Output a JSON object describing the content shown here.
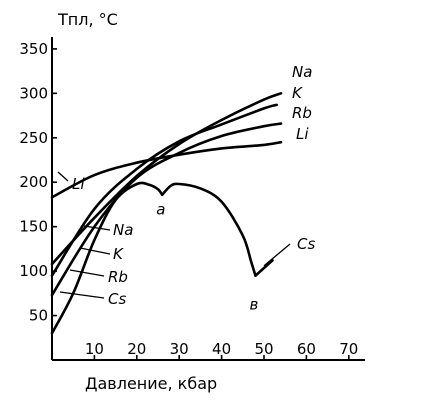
{
  "chart_data": {
    "type": "line",
    "ylabel": "Tпл, °C",
    "xlabel": "Давление, кбар",
    "xlim": [
      0,
      75
    ],
    "ylim": [
      0,
      360
    ],
    "x_ticks": [
      10,
      20,
      30,
      40,
      50,
      60,
      70
    ],
    "y_ticks": [
      50,
      100,
      150,
      200,
      250,
      300,
      350
    ],
    "grid": false,
    "series": [
      {
        "name": "Na",
        "x": [
          0,
          10,
          20,
          30,
          40,
          50,
          54
        ],
        "y": [
          108,
          160,
          207,
          243,
          270,
          293,
          300
        ]
      },
      {
        "name": "K",
        "x": [
          0,
          10,
          20,
          30,
          40,
          50,
          53
        ],
        "y": [
          95,
          170,
          215,
          246,
          265,
          283,
          287
        ]
      },
      {
        "name": "Rb",
        "x": [
          0,
          10,
          20,
          30,
          40,
          50,
          54
        ],
        "y": [
          73,
          150,
          205,
          233,
          252,
          263,
          266
        ]
      },
      {
        "name": "Li",
        "x": [
          0,
          10,
          20,
          30,
          40,
          50,
          54
        ],
        "y": [
          183,
          208,
          222,
          231,
          238,
          242,
          245
        ]
      },
      {
        "name": "Cs",
        "x": [
          0,
          5,
          10,
          15,
          20,
          23,
          25,
          26,
          28,
          30,
          35,
          40,
          45,
          47,
          48,
          52
        ],
        "y": [
          30,
          75,
          135,
          180,
          198,
          197,
          192,
          186,
          196,
          198,
          193,
          178,
          140,
          110,
          95,
          112
        ]
      }
    ],
    "annotations": [
      {
        "text": "а",
        "x": 26,
        "y": 186
      },
      {
        "text": "в",
        "x": 48,
        "y": 95
      }
    ]
  }
}
